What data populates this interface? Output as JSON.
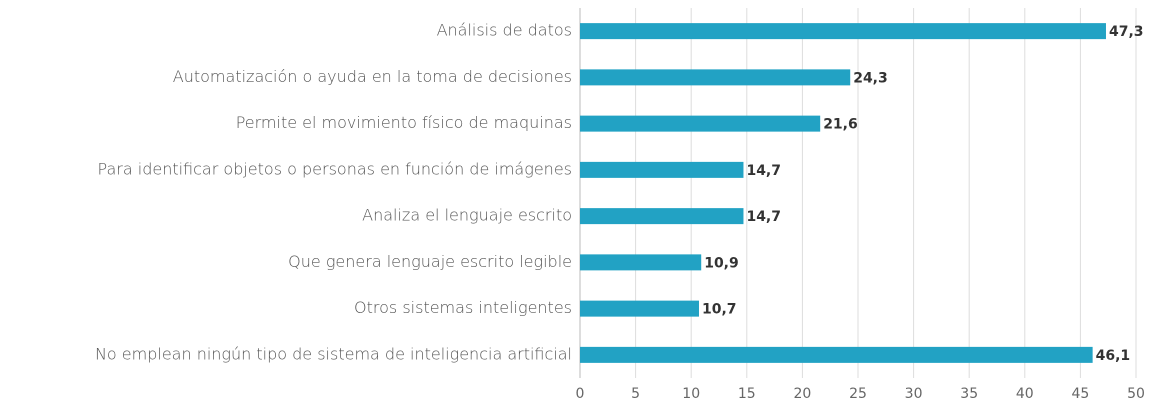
{
  "chart_data": {
    "type": "bar",
    "orientation": "horizontal",
    "categories": [
      "Análisis de datos",
      "Automatización o ayuda en la toma de decisiones",
      "Permite el movimiento físico de maquinas",
      "Para identificar objetos o personas en función de imágenes",
      "Analiza el lenguaje escrito",
      "Que genera lenguaje escrito legible",
      "Otros sistemas inteligentes",
      "No emplean ningún tipo de sistema de inteligencia artificial"
    ],
    "values": [
      47.3,
      24.3,
      21.6,
      14.7,
      14.7,
      10.9,
      10.7,
      46.1
    ],
    "value_labels": [
      "47,3",
      "24,3",
      "21,6",
      "14,7",
      "14,7",
      "10,9",
      "10,7",
      "46,1"
    ],
    "color": "#22a2c4",
    "xlim": [
      0,
      50
    ],
    "xticks": [
      0,
      5,
      10,
      15,
      20,
      25,
      30,
      35,
      40,
      45,
      50
    ],
    "grid": true
  }
}
